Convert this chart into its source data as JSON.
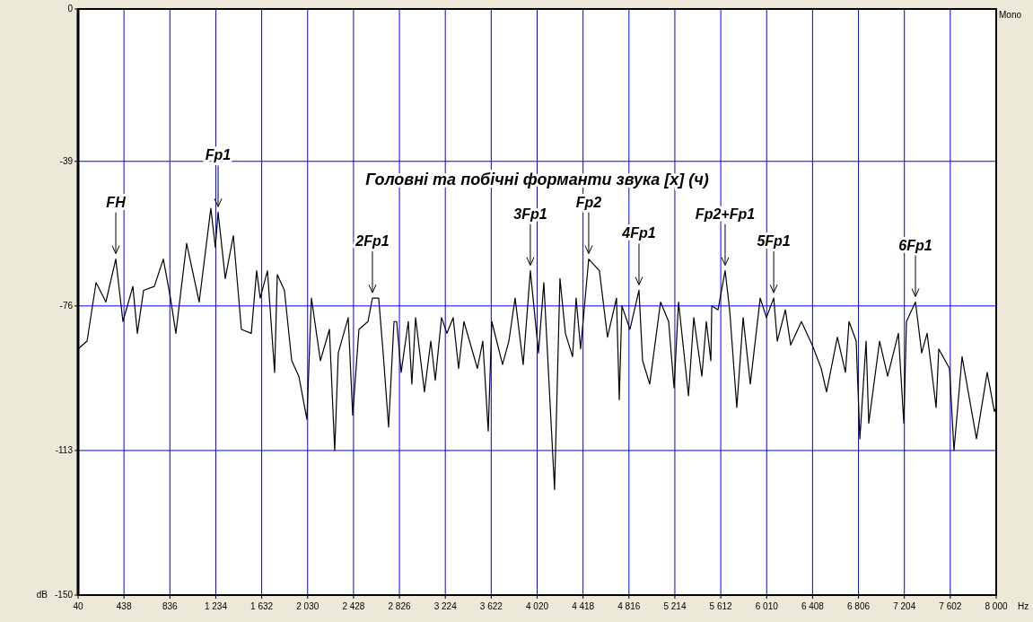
{
  "chart_data": {
    "type": "line",
    "title": "Головні та побічні форманти звука [x] (ч)",
    "xlabel": "Hz",
    "ylabel": "dB",
    "xlim": [
      40,
      8000
    ],
    "ylim": [
      -150,
      0
    ],
    "xticks": [
      40,
      438,
      836,
      {
        "value": 1234,
        "label": "1 234"
      },
      {
        "value": 1632,
        "label": "1 632"
      },
      {
        "value": 2030,
        "label": "2 030"
      },
      {
        "value": 2428,
        "label": "2 428"
      },
      {
        "value": 2826,
        "label": "2 826"
      },
      {
        "value": 3224,
        "label": "3 224"
      },
      {
        "value": 3622,
        "label": "3 622"
      },
      {
        "value": 4020,
        "label": "4 020"
      },
      {
        "value": 4418,
        "label": "4 418"
      },
      {
        "value": 4816,
        "label": "4 816"
      },
      {
        "value": 5214,
        "label": "5 214"
      },
      {
        "value": 5612,
        "label": "5 612"
      },
      {
        "value": 6010,
        "label": "6 010"
      },
      {
        "value": 6408,
        "label": "6 408"
      },
      {
        "value": 6806,
        "label": "6 806"
      },
      {
        "value": 7204,
        "label": "7 204"
      },
      {
        "value": 7602,
        "label": "7 602"
      },
      {
        "value": 8000,
        "label": "8 000"
      }
    ],
    "yticks": [
      0,
      -39,
      -76,
      -113,
      -150
    ],
    "grid": true,
    "marker": "none",
    "line_style": "solid",
    "series": [
      {
        "color": "#000000",
        "x": [
          40,
          118,
          196,
          281,
          367,
          429,
          515,
          554,
          608,
          701,
          779,
          841,
          888,
          981,
          1090,
          1191,
          1230,
          1254,
          1316,
          1386,
          1456,
          1542,
          1588,
          1619,
          1682,
          1744,
          1767,
          1829,
          1892,
          1954,
          2024,
          2063,
          2141,
          2219,
          2265,
          2296,
          2382,
          2421,
          2475,
          2553,
          2592,
          2646,
          2685,
          2732,
          2779,
          2802,
          2841,
          2903,
          2934,
          2966,
          3043,
          3098,
          3137,
          3191,
          3238,
          3292,
          3339,
          3385,
          3502,
          3549,
          3596,
          3627,
          3720,
          3775,
          3829,
          3899,
          3961,
          4032,
          4078,
          4171,
          4218,
          4265,
          4327,
          4358,
          4397,
          4467,
          4560,
          4630,
          4708,
          4732,
          4755,
          4825,
          4903,
          4934,
          4996,
          5090,
          5160,
          5207,
          5246,
          5332,
          5378,
          5448,
          5487,
          5526,
          5534,
          5588,
          5650,
          5689,
          5751,
          5806,
          5868,
          5954,
          6008,
          6071,
          6102,
          6172,
          6218,
          6311,
          6405,
          6483,
          6529,
          6623,
          6693,
          6724,
          6786,
          6818,
          6872,
          6895,
          6989,
          7059,
          7152,
          7199,
          7222,
          7300,
          7354,
          7401,
          7479,
          7502,
          7595,
          7634,
          7704,
          7829,
          7922,
          7984,
          8000
        ],
        "values": [
          -87,
          -85,
          -70,
          -75,
          -64,
          -80,
          -71,
          -83,
          -72,
          -71,
          -64,
          -74,
          -83,
          -60,
          -75,
          -51,
          -61,
          -52,
          -69,
          -58,
          -82,
          -83,
          -67,
          -74,
          -67,
          -93,
          -68,
          -72,
          -90,
          -94,
          -105,
          -74,
          -90,
          -82,
          -113,
          -88,
          -79,
          -104,
          -82,
          -80,
          -74,
          -74,
          -88,
          -107,
          -80,
          -80,
          -93,
          -80,
          -96,
          -79,
          -98,
          -85,
          -95,
          -79,
          -83,
          -79,
          -92,
          -80,
          -92,
          -85,
          -108,
          -80,
          -91,
          -85,
          -74,
          -91,
          -67,
          -88,
          -70,
          -123,
          -69,
          -83,
          -89,
          -74,
          -87,
          -64,
          -67,
          -84,
          -74,
          -100,
          -76,
          -82,
          -72,
          -90,
          -96,
          -75,
          -80,
          -97,
          -75,
          -99,
          -79,
          -94,
          -80,
          -90,
          -76,
          -77,
          -67,
          -77,
          -102,
          -79,
          -96,
          -74,
          -79,
          -74,
          -85,
          -77,
          -86,
          -80,
          -86,
          -92,
          -98,
          -84,
          -93,
          -80,
          -85,
          -110,
          -85,
          -106,
          -85,
          -94,
          -83,
          -106,
          -80,
          -75,
          -88,
          -83,
          -102,
          -87,
          -92,
          -113,
          -89,
          -110,
          -93,
          -103,
          -102
        ]
      }
    ],
    "annotations": [
      {
        "text": "FH",
        "x": 367,
        "y": -64
      },
      {
        "text": "Fp1",
        "x": 1254,
        "y": -52
      },
      {
        "text": "2Fp1",
        "x": 2592,
        "y": -74
      },
      {
        "text": "3Fp1",
        "x": 3961,
        "y": -67
      },
      {
        "text": "Fp2",
        "x": 4467,
        "y": -64
      },
      {
        "text": "4Fp1",
        "x": 4903,
        "y": -72
      },
      {
        "text": "Fp2+Fp1",
        "x": 5650,
        "y": -67
      },
      {
        "text": "5Fp1",
        "x": 6071,
        "y": -74
      },
      {
        "text": "6Fp1",
        "x": 7300,
        "y": -75
      },
      "Mono"
    ]
  }
}
